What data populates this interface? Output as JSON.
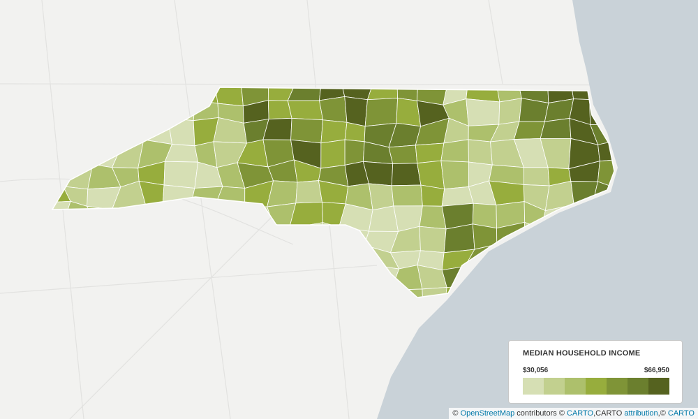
{
  "legend": {
    "title": "MEDIAN HOUSEHOLD INCOME",
    "min_label": "$30,056",
    "max_label": "$66,950",
    "colors": [
      "#d6dfb4",
      "#c2d08f",
      "#adc06c",
      "#97ad3d",
      "#7f9437",
      "#6b7f2e",
      "#55621f"
    ]
  },
  "attribution": {
    "copyright": "©",
    "osm": "OpenStreetMap",
    "contributors": "contributors ©",
    "carto1": "CARTO",
    "carto_attr": ",CARTO",
    "attribution": "attribution",
    "copyright2": ",©",
    "carto2": "CARTO"
  }
}
